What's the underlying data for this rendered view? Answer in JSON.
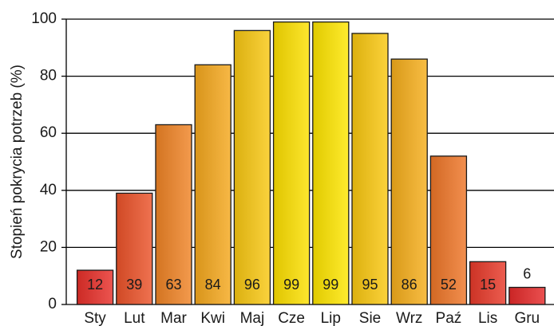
{
  "chart_data": {
    "type": "bar",
    "y_label": "Stopień pokrycia potrzeb (%)",
    "categories": [
      "Sty",
      "Lut",
      "Mar",
      "Kwi",
      "Maj",
      "Cze",
      "Lip",
      "Sie",
      "Wrz",
      "Paź",
      "Lis",
      "Gru"
    ],
    "values": [
      12,
      39,
      63,
      84,
      96,
      99,
      99,
      95,
      86,
      52,
      15,
      6
    ],
    "colors": [
      "#e8302a",
      "#ec532a",
      "#f08426",
      "#f5a81d",
      "#f9c812",
      "#fde000",
      "#ffe600",
      "#fac810",
      "#f6ae1b",
      "#ef7628",
      "#e83a2a",
      "#e52a2a"
    ],
    "ylim": [
      0,
      100
    ],
    "yticks": [
      0,
      20,
      40,
      60,
      80,
      100
    ],
    "grid": true
  }
}
